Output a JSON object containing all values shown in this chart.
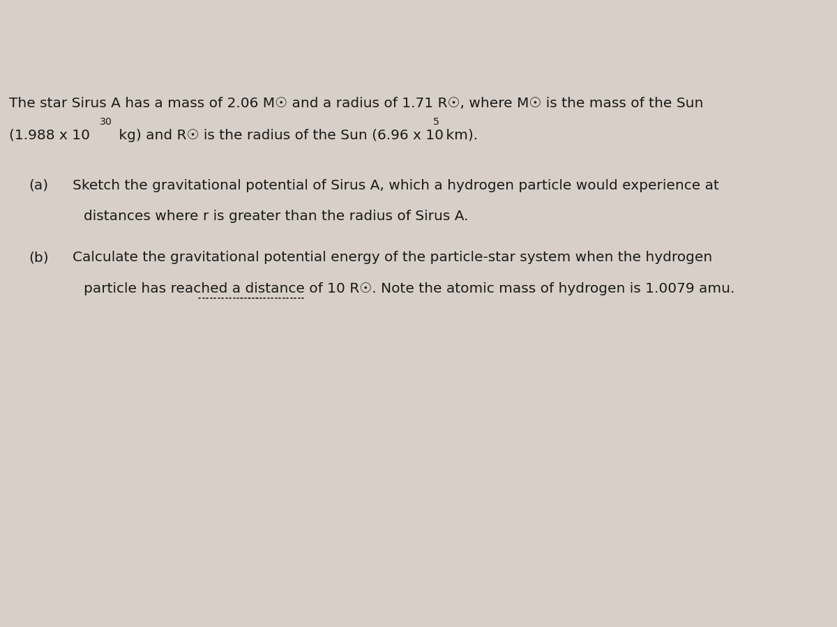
{
  "bg_color": "#d8d0c8",
  "text_color": "#1a1a1a",
  "page_bg": "#e8e0d8",
  "line1": "The star Sirus A has a mass of 2.06 M",
  "line1_sun1": "☉",
  "line1_mid": " and a radius of 1.71 R",
  "line1_sun2": "☉",
  "line1_end": ", where M",
  "line1_sun3": "☉",
  "line1_tail": " is the mass of the Sun",
  "line2_start": "(1.988 x 10",
  "line2_sup": "30",
  "line2_mid": " kg) and R",
  "line2_sun": "☉",
  "line2_end": " is the radius of the Sun (6.96 x 10",
  "line2_sup2": "5",
  "line2_tail": " km).",
  "part_a_label": "(a)",
  "part_a_text1": "Sketch the gravitational potential of Sirus A, which a hydrogen particle would experience at",
  "part_a_text2": "distances where r is greater than the radius of Sirus A.",
  "part_b_label": "(b)",
  "part_b_text1": "Calculate the gravitational potential energy of the particle-star system when the hydrogen",
  "part_b_text2_before_underline": "particle has reached a distance of 10 R",
  "part_b_sun": "☉",
  "part_b_text2_after": ". Note the atomic mass of hydrogen is 1.0079 amu.",
  "underline_text": "a distance of 10 R"
}
